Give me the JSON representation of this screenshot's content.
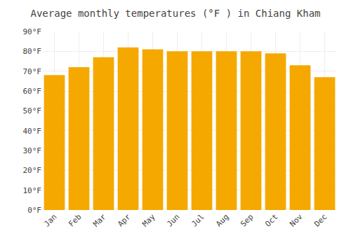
{
  "chart_data": {
    "type": "bar",
    "title": "Average monthly temperatures (°F ) in Chiang Kham",
    "categories": [
      "Jan",
      "Feb",
      "Mar",
      "Apr",
      "May",
      "Jun",
      "Jul",
      "Aug",
      "Sep",
      "Oct",
      "Nov",
      "Dec"
    ],
    "values": [
      68,
      72,
      77,
      82,
      81,
      80,
      80,
      80,
      80,
      79,
      73,
      67
    ],
    "color": "#F5A800",
    "ylim": [
      0,
      90
    ],
    "yticks": [
      {
        "value": 0,
        "label": "0°F"
      },
      {
        "value": 10,
        "label": "10°F"
      },
      {
        "value": 20,
        "label": "20°F"
      },
      {
        "value": 30,
        "label": "30°F"
      },
      {
        "value": 40,
        "label": "40°F"
      },
      {
        "value": 50,
        "label": "50°F"
      },
      {
        "value": 60,
        "label": "60°F"
      },
      {
        "value": 70,
        "label": "70°F"
      },
      {
        "value": 80,
        "label": "80°F"
      },
      {
        "value": 90,
        "label": "90°F"
      }
    ],
    "grid": true
  }
}
